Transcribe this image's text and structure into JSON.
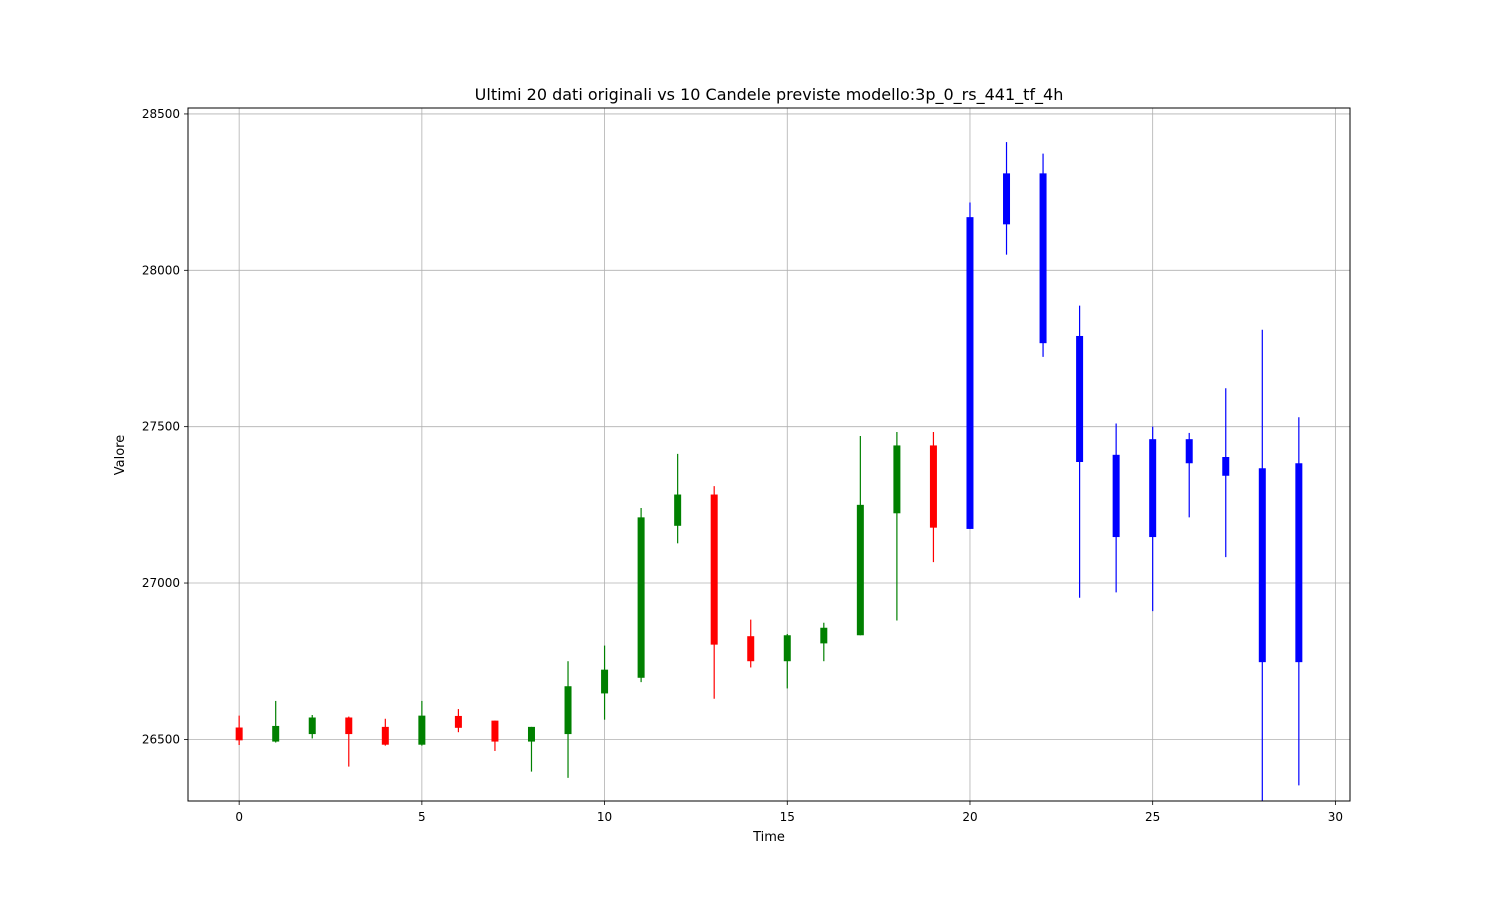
{
  "chart_data": {
    "type": "candlestick",
    "title": "Ultimi 20 dati originali vs 10 Candele previste modello:3p_0_rs_441_tf_4h",
    "xlabel": "Time",
    "ylabel": "Valore",
    "xlim": [
      -1.4,
      30.4
    ],
    "ylim": [
      26303,
      28519
    ],
    "xticks": [
      0,
      5,
      10,
      15,
      20,
      25,
      30
    ],
    "yticks": [
      26500,
      27000,
      27500,
      28000,
      28500
    ],
    "grid": true,
    "colors": {
      "up": "#008000",
      "down": "#ff0000",
      "predicted": "#0000ff"
    },
    "series": [
      {
        "name": "",
        "candles": [
          {
            "x": 0,
            "open": 26538,
            "close": 26497,
            "high": 26576,
            "low": 26482
          },
          {
            "x": 1,
            "open": 26493,
            "close": 26543,
            "high": 26623,
            "low": 26490
          },
          {
            "x": 2,
            "open": 26517,
            "close": 26570,
            "high": 26578,
            "low": 26503
          },
          {
            "x": 3,
            "open": 26570,
            "close": 26517,
            "high": 26573,
            "low": 26413
          },
          {
            "x": 4,
            "open": 26540,
            "close": 26483,
            "high": 26566,
            "low": 26480
          },
          {
            "x": 5,
            "open": 26483,
            "close": 26576,
            "high": 26623,
            "low": 26480
          },
          {
            "x": 6,
            "open": 26575,
            "close": 26537,
            "high": 26597,
            "low": 26523
          },
          {
            "x": 7,
            "open": 26560,
            "close": 26493,
            "high": 26560,
            "low": 26463
          },
          {
            "x": 8,
            "open": 26493,
            "close": 26540,
            "high": 26540,
            "low": 26397
          },
          {
            "x": 9,
            "open": 26517,
            "close": 26670,
            "high": 26750,
            "low": 26377
          },
          {
            "x": 10,
            "open": 26647,
            "close": 26723,
            "high": 26800,
            "low": 26563
          },
          {
            "x": 11,
            "open": 26697,
            "close": 27210,
            "high": 27240,
            "low": 26683
          },
          {
            "x": 12,
            "open": 27183,
            "close": 27283,
            "high": 27413,
            "low": 27127
          },
          {
            "x": 13,
            "open": 27283,
            "close": 26803,
            "high": 27310,
            "low": 26630
          },
          {
            "x": 14,
            "open": 26830,
            "close": 26750,
            "high": 26883,
            "low": 26730
          },
          {
            "x": 15,
            "open": 26750,
            "close": 26833,
            "high": 26837,
            "low": 26663
          },
          {
            "x": 16,
            "open": 26807,
            "close": 26857,
            "high": 26873,
            "low": 26750
          },
          {
            "x": 17,
            "open": 26833,
            "close": 27250,
            "high": 27470,
            "low": 26833
          },
          {
            "x": 18,
            "open": 27223,
            "close": 27440,
            "high": 27483,
            "low": 26880
          },
          {
            "x": 19,
            "open": 27440,
            "close": 27177,
            "high": 27483,
            "low": 27067
          },
          {
            "x": 20,
            "open": 27173,
            "close": 28170,
            "high": 28217,
            "low": 27173
          },
          {
            "x": 21,
            "open": 28147,
            "close": 28310,
            "high": 28410,
            "low": 28050
          },
          {
            "x": 22,
            "open": 28310,
            "close": 27767,
            "high": 28373,
            "low": 27723
          },
          {
            "x": 23,
            "open": 27790,
            "close": 27387,
            "high": 27887,
            "low": 26953
          },
          {
            "x": 24,
            "open": 27410,
            "close": 27147,
            "high": 27510,
            "low": 26970
          },
          {
            "x": 25,
            "open": 27460,
            "close": 27147,
            "high": 27500,
            "low": 26910
          },
          {
            "x": 26,
            "open": 27460,
            "close": 27383,
            "high": 27480,
            "low": 27210
          },
          {
            "x": 27,
            "open": 27403,
            "close": 27343,
            "high": 27623,
            "low": 27083
          },
          {
            "x": 28,
            "open": 27367,
            "close": 26747,
            "high": 27810,
            "low": 26303
          },
          {
            "x": 29,
            "open": 27383,
            "close": 26747,
            "high": 27530,
            "low": 26353
          }
        ]
      }
    ]
  }
}
